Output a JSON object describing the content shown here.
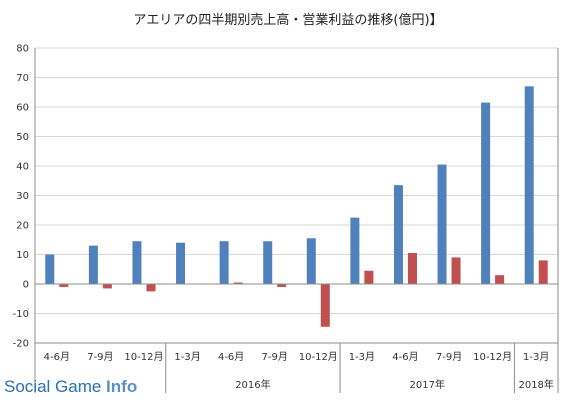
{
  "chart_data": {
    "type": "bar",
    "title": "アエリアの四半期別売上高・営業利益の推移(億円)】",
    "quarters": [
      "4-6月",
      "7-9月",
      "10-12月",
      "1-3月",
      "4-6月",
      "7-9月",
      "10-12月",
      "1-3月",
      "4-6月",
      "7-9月",
      "10-12月",
      "1-3月"
    ],
    "year_groups": [
      {
        "label": "",
        "start": 0,
        "count": 3
      },
      {
        "label": "2016年",
        "start": 3,
        "count": 4
      },
      {
        "label": "2017年",
        "start": 7,
        "count": 4
      },
      {
        "label": "2018年",
        "start": 11,
        "count": 1
      }
    ],
    "series": [
      {
        "values": [
          10,
          13,
          14.5,
          14,
          14.5,
          14.5,
          15.5,
          22.5,
          33.5,
          40.5,
          61.5,
          67
        ]
      },
      {
        "values": [
          -1,
          -1.5,
          -2.5,
          0,
          0.5,
          -1,
          -14.5,
          4.5,
          10.5,
          9,
          3,
          8
        ]
      }
    ],
    "series_colors": [
      "#4f81bd",
      "#c0504d"
    ],
    "ylim": [
      -20,
      80
    ],
    "yticks": [
      80,
      70,
      60,
      50,
      40,
      30,
      20,
      10,
      0,
      -10,
      -20
    ],
    "grid": true,
    "legend": "none"
  },
  "watermark": {
    "main": "Social Game ",
    "accent": "Info"
  }
}
